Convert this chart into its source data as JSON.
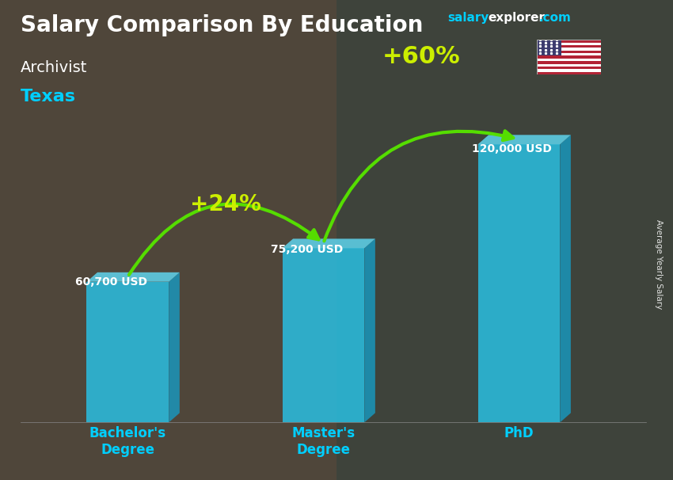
{
  "title": "Salary Comparison By Education",
  "subtitle_job": "Archivist",
  "subtitle_location": "Texas",
  "ylabel": "Average Yearly Salary",
  "categories": [
    "Bachelor's\nDegree",
    "Master's\nDegree",
    "PhD"
  ],
  "values": [
    60700,
    75200,
    120000
  ],
  "value_labels": [
    "60,700 USD",
    "75,200 USD",
    "120,000 USD"
  ],
  "pct_labels": [
    "+24%",
    "+60%"
  ],
  "bar_color_front": "#29c4e8",
  "bar_color_top": "#60daf5",
  "bar_color_side": "#1899c0",
  "bar_alpha": 0.82,
  "arrow_color": "#55dd00",
  "pct_color": "#ccee00",
  "title_color": "#ffffff",
  "subtitle_job_color": "#ffffff",
  "subtitle_location_color": "#00cfff",
  "xticklabel_color": "#00cfff",
  "watermark_salary_color": "#00cfff",
  "watermark_explorer_color": "#ffffff",
  "watermark_com_color": "#00cfff",
  "value_label_color": "#ffffff",
  "bg_color": "#4a4a4a",
  "ylim": [
    0,
    145000
  ],
  "bar_width": 0.42
}
